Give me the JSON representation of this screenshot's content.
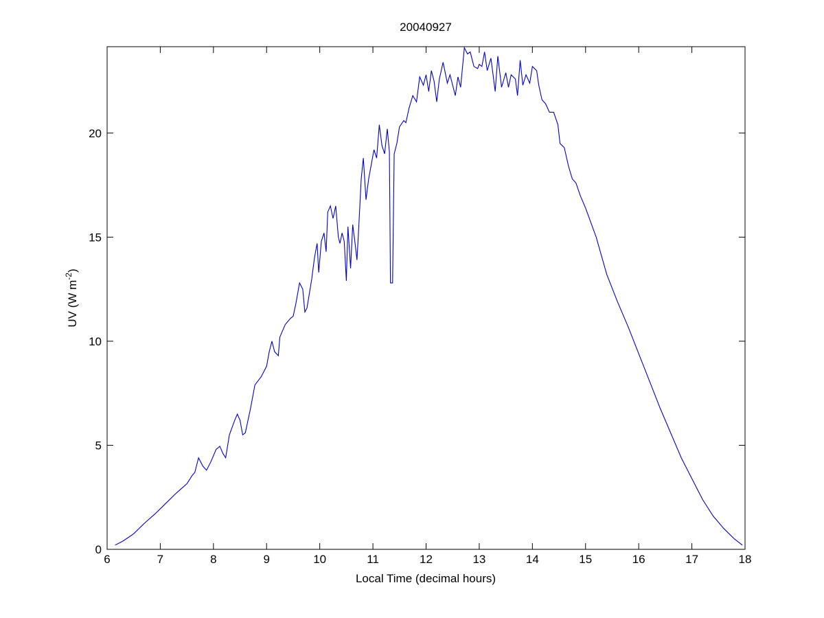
{
  "chart_data": {
    "type": "line",
    "title": "20040927",
    "xlabel": "Local Time (decimal hours)",
    "ylabel": {
      "text": "UV (W m",
      "superscript": "-2",
      "suffix": ")"
    },
    "xlim": [
      6,
      18
    ],
    "xticks": [
      6,
      7,
      8,
      9,
      10,
      11,
      12,
      13,
      14,
      15,
      16,
      17,
      18
    ],
    "ylim": [
      0,
      24.15
    ],
    "yticks": [
      0,
      5,
      10,
      15,
      20
    ],
    "grid": false,
    "box": true,
    "series": [
      {
        "color": "#0000c8",
        "x": [
          6.15,
          6.3,
          6.5,
          6.7,
          6.9,
          7.1,
          7.3,
          7.5,
          7.6,
          7.65,
          7.72,
          7.8,
          7.87,
          7.95,
          8.05,
          8.12,
          8.18,
          8.23,
          8.3,
          8.4,
          8.45,
          8.5,
          8.55,
          8.6,
          8.7,
          8.78,
          8.9,
          9.0,
          9.05,
          9.1,
          9.15,
          9.22,
          9.25,
          9.35,
          9.45,
          9.5,
          9.55,
          9.62,
          9.68,
          9.72,
          9.76,
          9.85,
          9.9,
          9.95,
          9.98,
          10.03,
          10.08,
          10.12,
          10.15,
          10.2,
          10.25,
          10.3,
          10.35,
          10.38,
          10.42,
          10.46,
          10.5,
          10.53,
          10.58,
          10.62,
          10.66,
          10.7,
          10.73,
          10.78,
          10.82,
          10.87,
          10.92,
          10.97,
          11.02,
          11.07,
          11.12,
          11.17,
          11.22,
          11.27,
          11.31,
          11.33,
          11.37,
          11.4,
          11.45,
          11.5,
          11.58,
          11.62,
          11.68,
          11.75,
          11.82,
          11.88,
          11.95,
          12.0,
          12.05,
          12.1,
          12.15,
          12.2,
          12.25,
          12.32,
          12.4,
          12.45,
          12.55,
          12.6,
          12.65,
          12.72,
          12.78,
          12.83,
          12.9,
          12.97,
          13.0,
          13.05,
          13.1,
          13.15,
          13.22,
          13.3,
          13.35,
          13.42,
          13.5,
          13.55,
          13.6,
          13.68,
          13.72,
          13.77,
          13.82,
          13.88,
          13.95,
          14.0,
          14.08,
          14.12,
          14.18,
          14.25,
          14.32,
          14.4,
          14.48,
          14.52,
          14.6,
          14.68,
          14.75,
          14.82,
          14.9,
          15.0,
          15.2,
          15.4,
          15.6,
          15.8,
          16.0,
          16.2,
          16.4,
          16.6,
          16.8,
          17.0,
          17.2,
          17.4,
          17.6,
          17.8,
          17.95
        ],
        "values": [
          0.2,
          0.4,
          0.75,
          1.25,
          1.7,
          2.2,
          2.7,
          3.15,
          3.55,
          3.7,
          4.4,
          4.0,
          3.8,
          4.2,
          4.8,
          4.95,
          4.6,
          4.4,
          5.5,
          6.2,
          6.5,
          6.2,
          5.5,
          5.6,
          6.8,
          7.9,
          8.3,
          8.8,
          9.5,
          10.0,
          9.5,
          9.3,
          10.2,
          10.8,
          11.1,
          11.2,
          11.8,
          12.8,
          12.5,
          11.4,
          11.6,
          13.0,
          14.0,
          14.7,
          13.3,
          14.8,
          15.2,
          14.3,
          16.2,
          16.5,
          15.9,
          16.5,
          15.0,
          14.7,
          15.2,
          14.8,
          12.9,
          15.5,
          13.5,
          15.6,
          14.8,
          13.9,
          15.3,
          17.8,
          18.8,
          16.8,
          17.8,
          18.5,
          19.2,
          18.8,
          20.4,
          19.4,
          19.0,
          20.2,
          19.1,
          12.8,
          12.8,
          19.0,
          19.5,
          20.3,
          20.6,
          20.5,
          21.2,
          21.8,
          21.5,
          22.7,
          22.3,
          22.8,
          22.0,
          23.0,
          22.5,
          21.5,
          22.6,
          23.4,
          22.4,
          22.8,
          21.8,
          22.7,
          22.2,
          24.1,
          23.8,
          23.9,
          23.2,
          23.1,
          23.3,
          23.2,
          23.9,
          23.0,
          23.6,
          22.0,
          23.7,
          22.2,
          22.9,
          22.2,
          22.8,
          22.6,
          21.8,
          23.5,
          22.3,
          22.8,
          22.4,
          23.2,
          23.0,
          22.3,
          21.6,
          21.4,
          21.0,
          21.0,
          20.4,
          19.5,
          19.3,
          18.4,
          17.8,
          17.6,
          17.0,
          16.4,
          15.0,
          13.2,
          11.9,
          10.7,
          9.4,
          8.1,
          6.8,
          5.6,
          4.4,
          3.4,
          2.4,
          1.6,
          1.0,
          0.5,
          0.2
        ]
      }
    ]
  }
}
